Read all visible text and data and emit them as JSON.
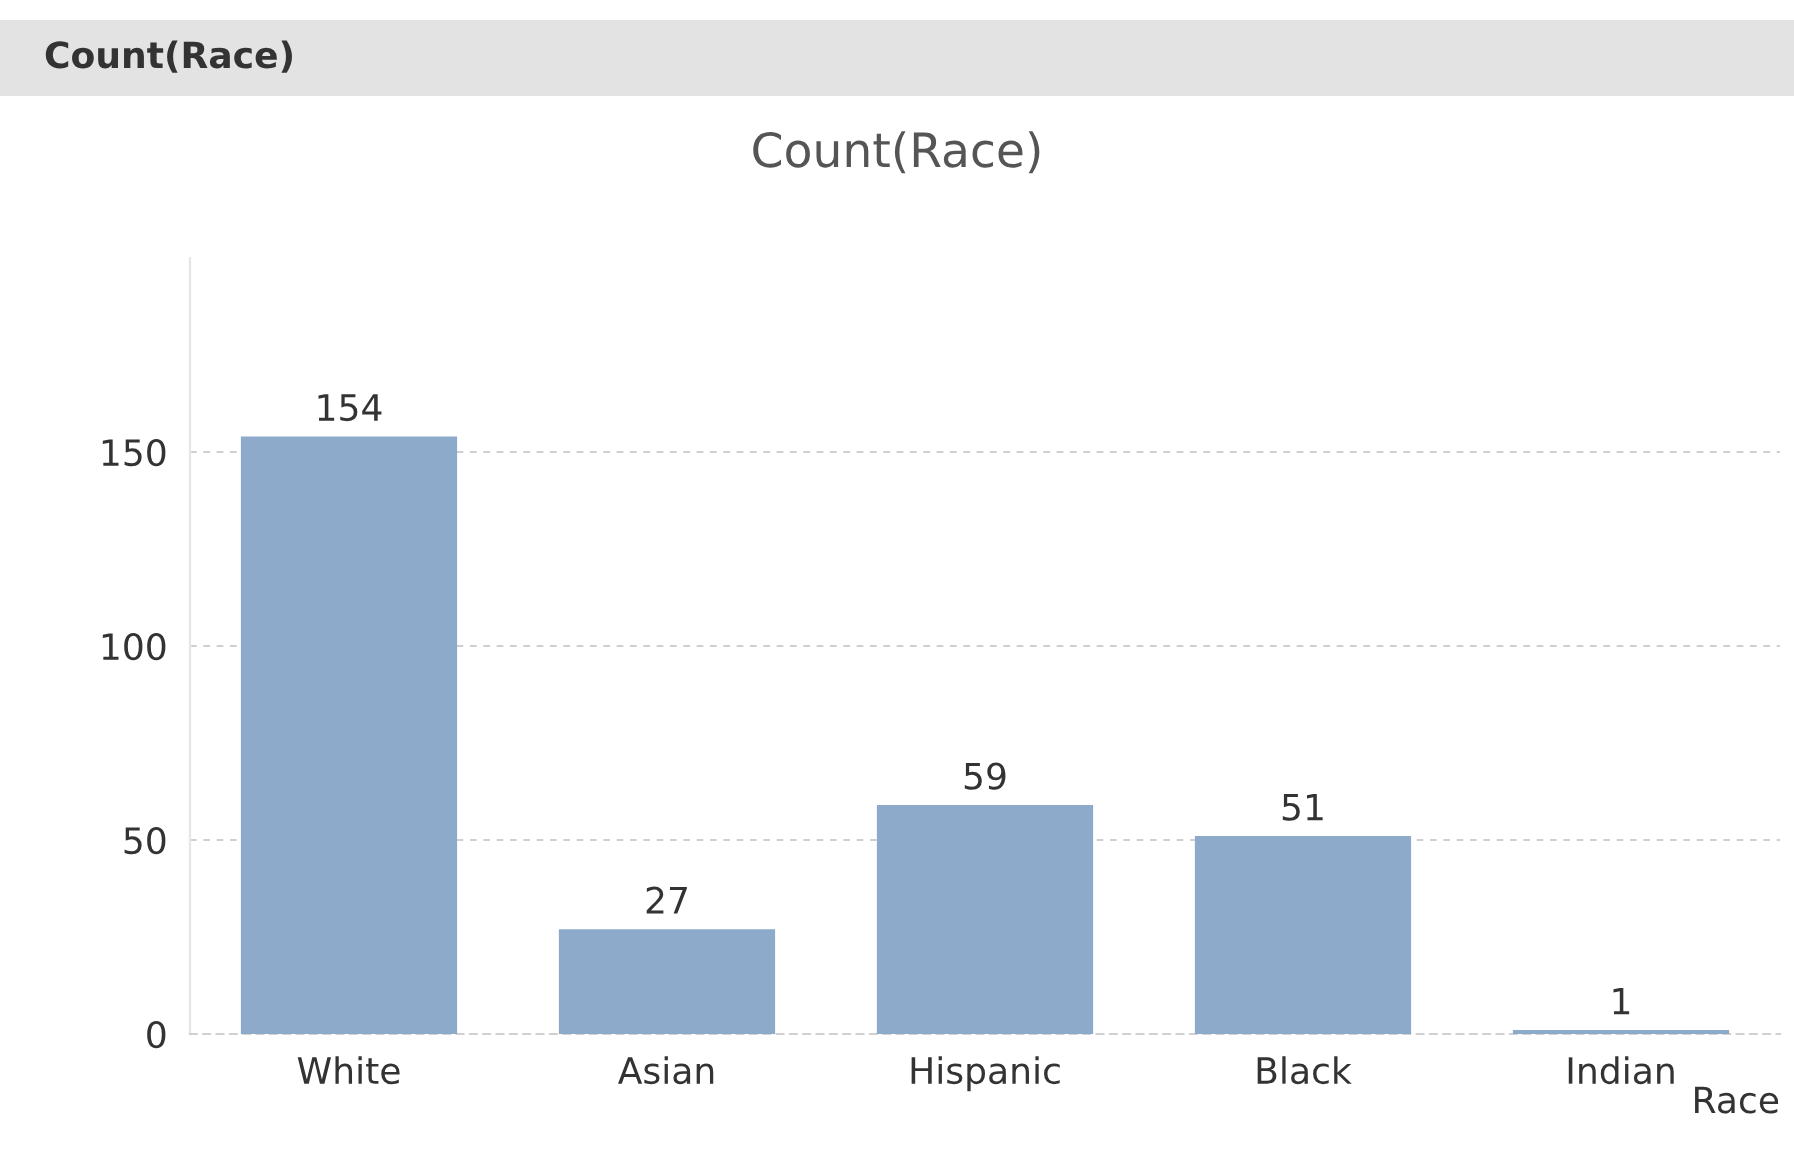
{
  "chart_data": {
    "type": "bar",
    "title": "Count(Race)",
    "xlabel": "Race",
    "annotations": [
      "Count(Race)"
    ],
    "categories": [
      "White",
      "Asian",
      "Hispanic",
      "Black",
      "Indian"
    ],
    "values": [
      154,
      27,
      59,
      51,
      1
    ],
    "color": "#8eaacb",
    "ylim": [
      0,
      200
    ],
    "yticks": [
      0,
      50,
      100,
      150
    ],
    "grid": "y",
    "data_labels": true
  }
}
